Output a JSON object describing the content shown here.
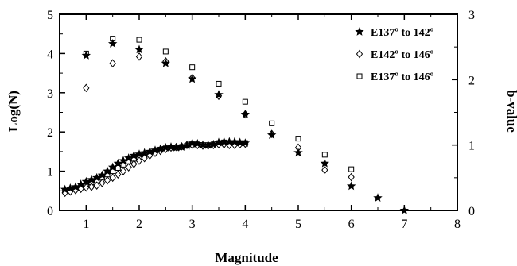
{
  "chart_data": {
    "type": "scatter",
    "xlabel": "Magnitude",
    "ylabel": "Log(N)",
    "y2label": "b-value",
    "xlim": [
      0.5,
      8
    ],
    "ylim": [
      0,
      5
    ],
    "y2lim": [
      0,
      3
    ],
    "xticks": [
      "1",
      "2",
      "3",
      "4",
      "5",
      "6",
      "7",
      "8"
    ],
    "yticks": [
      "0",
      "1",
      "2",
      "3",
      "4",
      "5"
    ],
    "y2ticks": [
      "0",
      "1",
      "2",
      "3"
    ],
    "grid": false,
    "legend_position": "top-right",
    "series": [
      {
        "name": "E137º to 142º",
        "marker": "star",
        "axis": "left",
        "points": [
          [
            1.0,
            3.95
          ],
          [
            1.5,
            4.25
          ],
          [
            2.0,
            4.1
          ],
          [
            2.5,
            3.75
          ],
          [
            3.0,
            3.35
          ],
          [
            3.5,
            2.95
          ],
          [
            4.0,
            2.45
          ],
          [
            4.5,
            1.92
          ],
          [
            5.0,
            1.47
          ],
          [
            5.5,
            1.2
          ],
          [
            6.0,
            0.62
          ],
          [
            6.5,
            0.32
          ],
          [
            7.0,
            0.0
          ]
        ]
      },
      {
        "name": "E142º to 146º",
        "marker": "diamond",
        "axis": "left",
        "points": [
          [
            1.0,
            3.12
          ],
          [
            1.5,
            3.75
          ],
          [
            2.0,
            3.92
          ],
          [
            2.5,
            3.8
          ],
          [
            3.0,
            3.38
          ],
          [
            3.5,
            2.92
          ],
          [
            4.0,
            2.45
          ],
          [
            4.5,
            1.95
          ],
          [
            5.0,
            1.6
          ],
          [
            5.5,
            1.03
          ],
          [
            6.0,
            0.85
          ]
        ]
      },
      {
        "name": "E137º to 146º",
        "marker": "square",
        "axis": "left",
        "points": [
          [
            1.0,
            4.0
          ],
          [
            1.5,
            4.38
          ],
          [
            2.0,
            4.35
          ],
          [
            2.5,
            4.05
          ],
          [
            3.0,
            3.65
          ],
          [
            3.5,
            3.23
          ],
          [
            4.0,
            2.77
          ],
          [
            4.5,
            2.22
          ],
          [
            5.0,
            1.83
          ],
          [
            5.5,
            1.42
          ],
          [
            6.0,
            1.05
          ]
        ]
      },
      {
        "name": "b-value (E137º to 142º)",
        "marker": "star",
        "axis": "right",
        "points": [
          [
            0.6,
            0.32
          ],
          [
            0.7,
            0.34
          ],
          [
            0.8,
            0.36
          ],
          [
            0.9,
            0.4
          ],
          [
            1.0,
            0.44
          ],
          [
            1.1,
            0.47
          ],
          [
            1.2,
            0.5
          ],
          [
            1.3,
            0.54
          ],
          [
            1.4,
            0.6
          ],
          [
            1.5,
            0.66
          ],
          [
            1.6,
            0.72
          ],
          [
            1.7,
            0.76
          ],
          [
            1.8,
            0.8
          ],
          [
            1.9,
            0.84
          ],
          [
            2.0,
            0.86
          ],
          [
            2.1,
            0.88
          ],
          [
            2.2,
            0.9
          ],
          [
            2.3,
            0.92
          ],
          [
            2.4,
            0.94
          ],
          [
            2.5,
            0.96
          ],
          [
            2.6,
            0.97
          ],
          [
            2.7,
            0.96
          ],
          [
            2.8,
            0.97
          ],
          [
            2.9,
            0.99
          ],
          [
            3.0,
            1.03
          ],
          [
            3.1,
            1.02
          ],
          [
            3.2,
            1.0
          ],
          [
            3.3,
            1.0
          ],
          [
            3.4,
            1.01
          ],
          [
            3.5,
            1.04
          ],
          [
            3.6,
            1.05
          ],
          [
            3.7,
            1.05
          ],
          [
            3.8,
            1.05
          ],
          [
            3.9,
            1.04
          ],
          [
            4.0,
            1.03
          ]
        ]
      },
      {
        "name": "b-value (E142º to 146º)",
        "marker": "diamond",
        "axis": "right",
        "points": [
          [
            0.6,
            0.27
          ],
          [
            0.7,
            0.29
          ],
          [
            0.8,
            0.31
          ],
          [
            0.9,
            0.33
          ],
          [
            1.0,
            0.35
          ],
          [
            1.1,
            0.36
          ],
          [
            1.2,
            0.38
          ],
          [
            1.3,
            0.42
          ],
          [
            1.4,
            0.46
          ],
          [
            1.5,
            0.5
          ],
          [
            1.6,
            0.55
          ],
          [
            1.7,
            0.6
          ],
          [
            1.8,
            0.66
          ],
          [
            1.9,
            0.71
          ],
          [
            2.0,
            0.76
          ],
          [
            2.1,
            0.8
          ],
          [
            2.2,
            0.84
          ],
          [
            2.3,
            0.88
          ],
          [
            2.4,
            0.91
          ],
          [
            2.5,
            0.94
          ],
          [
            2.6,
            0.96
          ],
          [
            2.7,
            0.97
          ],
          [
            2.8,
            0.98
          ],
          [
            2.9,
            1.0
          ],
          [
            3.0,
            1.0
          ],
          [
            3.1,
            1.0
          ],
          [
            3.2,
            0.99
          ],
          [
            3.3,
            0.99
          ],
          [
            3.4,
            1.0
          ],
          [
            3.5,
            1.01
          ],
          [
            3.6,
            1.01
          ],
          [
            3.7,
            1.0
          ],
          [
            3.8,
            1.0
          ],
          [
            3.9,
            1.01
          ],
          [
            4.0,
            1.02
          ]
        ]
      },
      {
        "name": "b-value (E137º to 146º)",
        "marker": "square",
        "axis": "right",
        "points": [
          [
            0.6,
            0.3
          ],
          [
            0.7,
            0.32
          ],
          [
            0.8,
            0.34
          ],
          [
            0.9,
            0.37
          ],
          [
            1.0,
            0.4
          ],
          [
            1.1,
            0.43
          ],
          [
            1.2,
            0.46
          ],
          [
            1.3,
            0.5
          ],
          [
            1.4,
            0.55
          ],
          [
            1.5,
            0.6
          ],
          [
            1.6,
            0.65
          ],
          [
            1.7,
            0.7
          ],
          [
            1.8,
            0.75
          ],
          [
            1.9,
            0.79
          ],
          [
            2.0,
            0.82
          ],
          [
            2.1,
            0.85
          ],
          [
            2.2,
            0.88
          ],
          [
            2.3,
            0.9
          ],
          [
            2.4,
            0.93
          ],
          [
            2.5,
            0.95
          ],
          [
            2.6,
            0.96
          ],
          [
            2.7,
            0.96
          ],
          [
            2.8,
            0.97
          ],
          [
            2.9,
            0.99
          ],
          [
            3.0,
            1.01
          ],
          [
            3.1,
            1.01
          ],
          [
            3.2,
            1.0
          ],
          [
            3.3,
            1.0
          ],
          [
            3.4,
            1.01
          ],
          [
            3.5,
            1.03
          ],
          [
            3.6,
            1.04
          ],
          [
            3.7,
            1.03
          ],
          [
            3.8,
            1.03
          ],
          [
            3.9,
            1.03
          ],
          [
            4.0,
            1.03
          ]
        ]
      }
    ],
    "legend": [
      {
        "marker": "star",
        "label": "E137º to 142º"
      },
      {
        "marker": "diamond",
        "label": "E142º to 146º"
      },
      {
        "marker": "square",
        "label": "E137º to 146º"
      }
    ]
  }
}
